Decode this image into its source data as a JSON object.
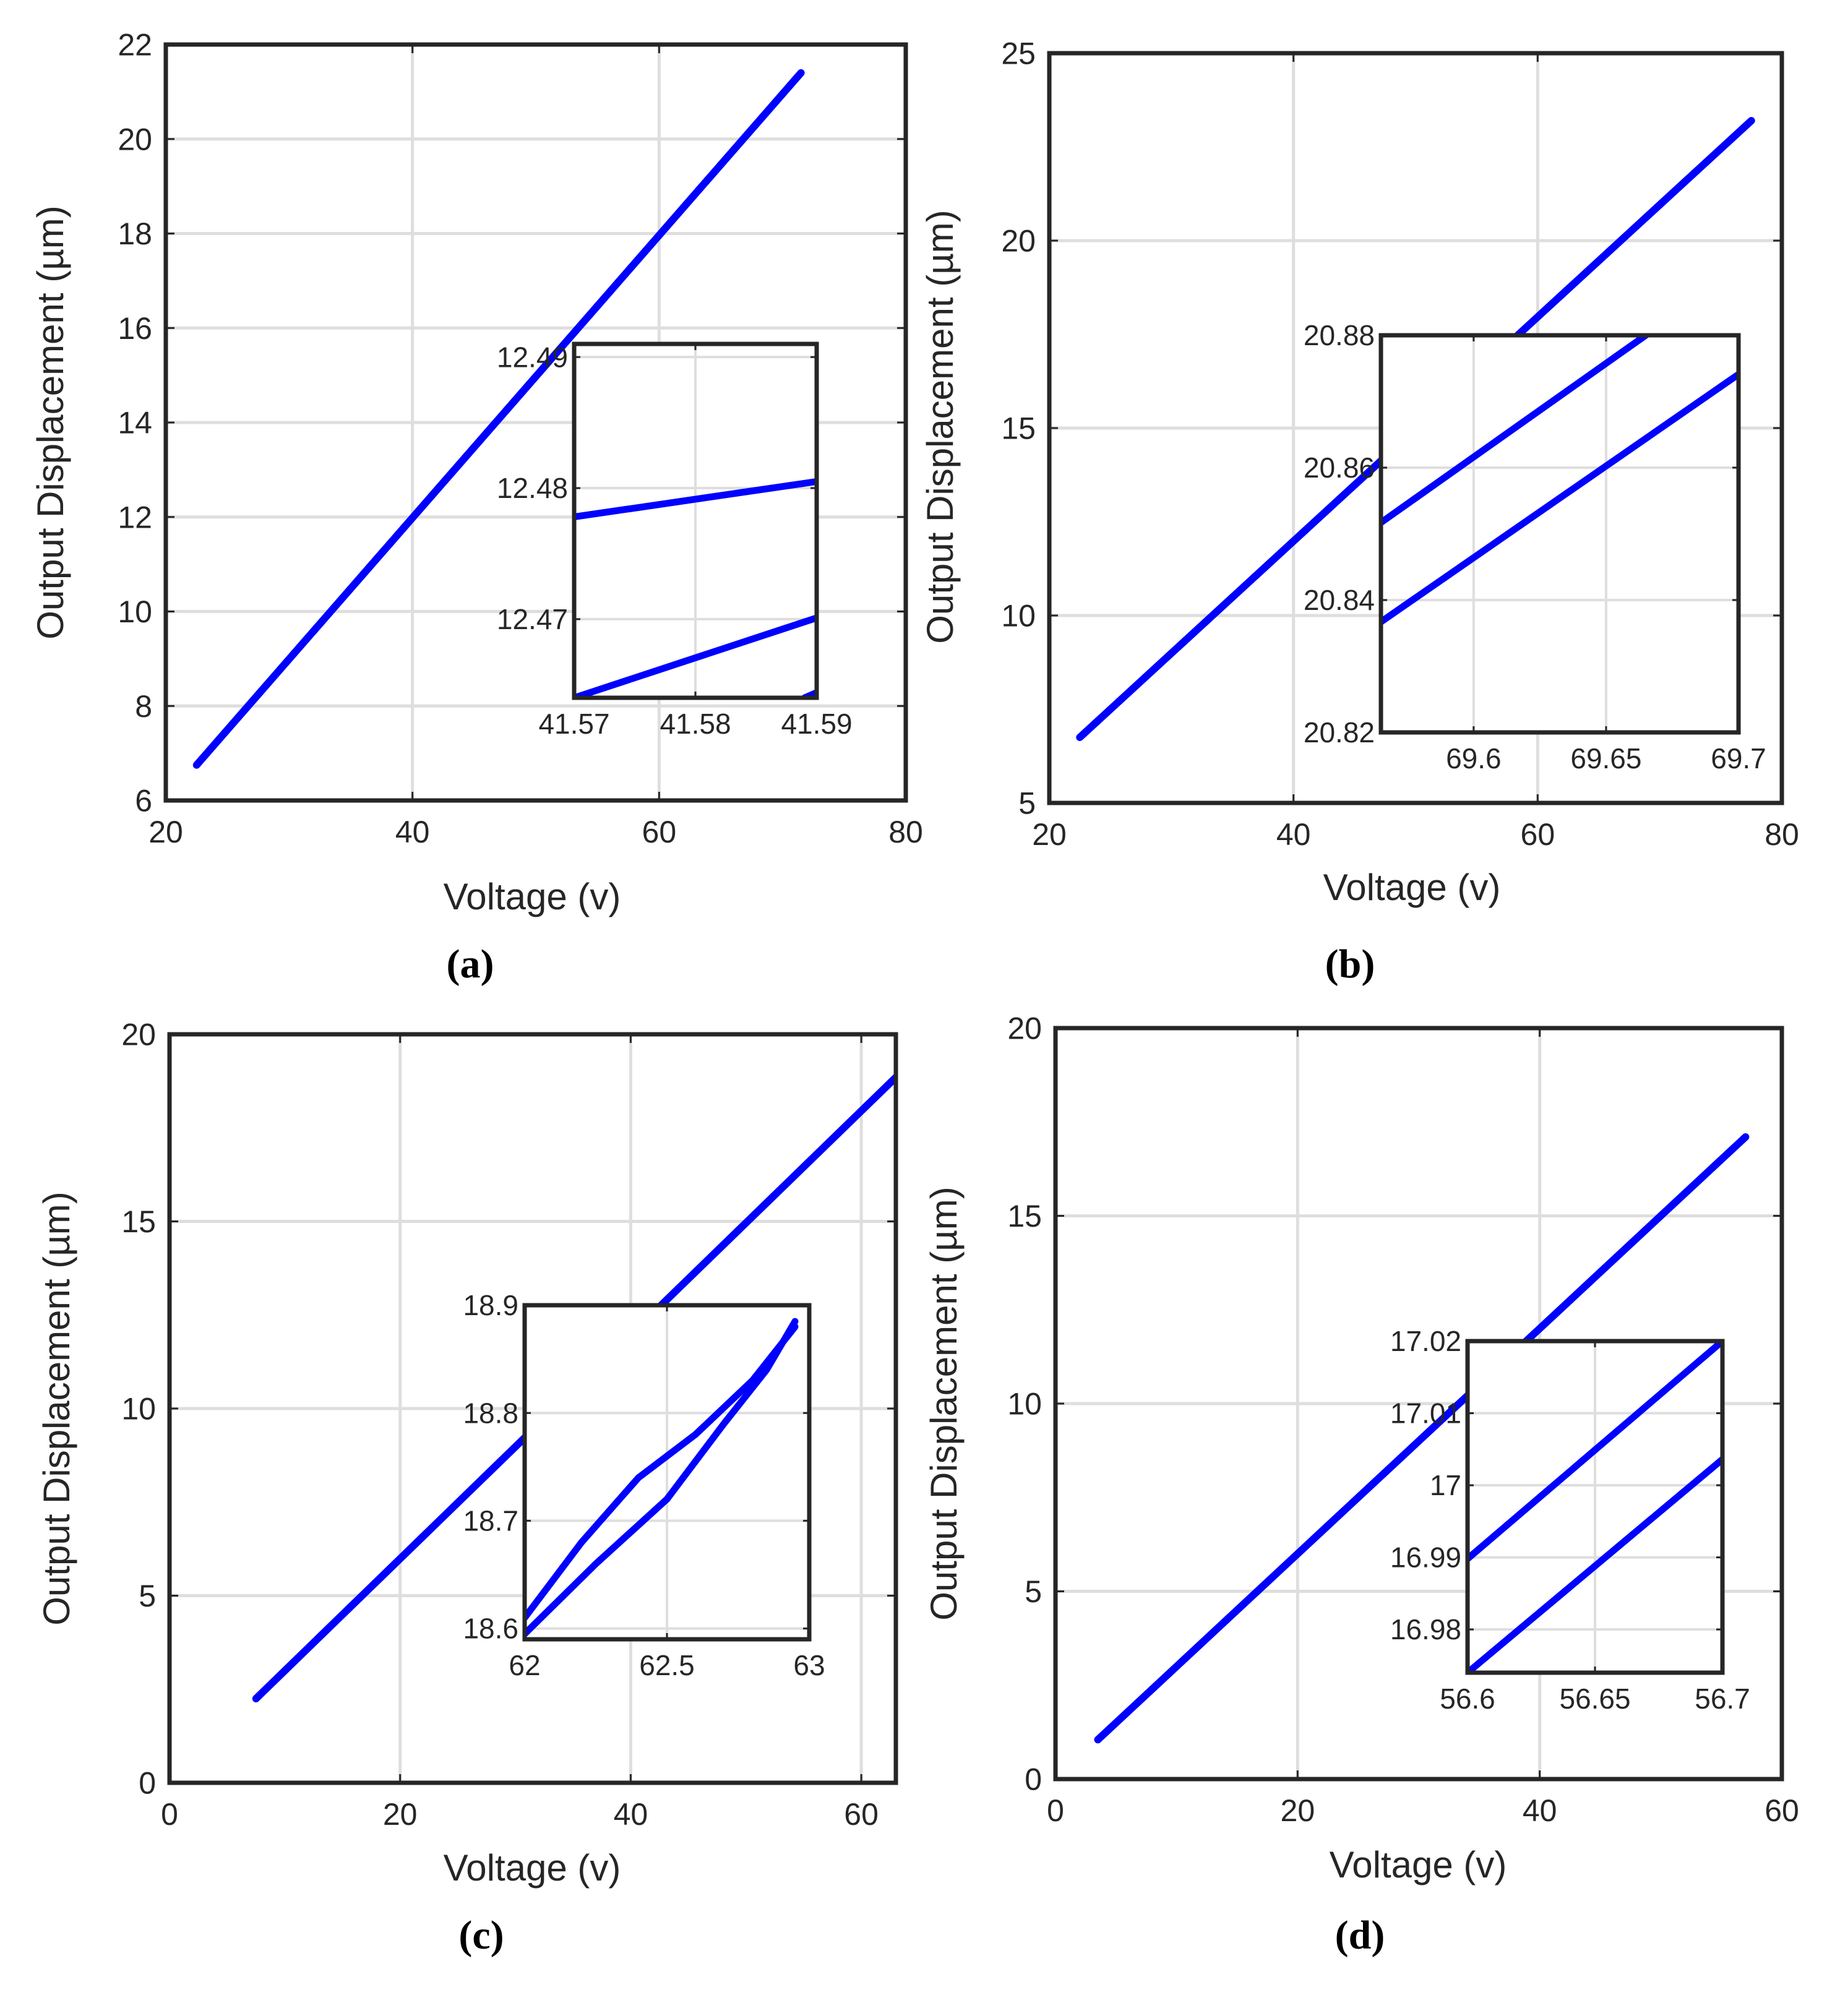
{
  "figure": {
    "captions": [
      "(a)",
      "(b)",
      "(c)",
      "(d)"
    ],
    "line_color": "#0000ff",
    "axis_color": "#262626",
    "grid_color": "#dedede"
  },
  "chart_data": [
    {
      "id": "a",
      "type": "line",
      "caption": "(a)",
      "xlabel": "Voltage (v)",
      "ylabel": "Output Displacement (µm)",
      "xlim": [
        20,
        80
      ],
      "ylim": [
        6,
        22
      ],
      "xticks": [
        20,
        40,
        60,
        80
      ],
      "yticks": [
        6,
        8,
        10,
        12,
        14,
        16,
        18,
        20,
        22
      ],
      "grid": true,
      "series": [
        {
          "name": "displacement",
          "x": [
            22.5,
            71.5
          ],
          "y": [
            6.75,
            21.4
          ]
        }
      ],
      "inset": {
        "xlim": [
          41.57,
          41.59
        ],
        "ylim": [
          12.464,
          12.491
        ],
        "xticks": [
          41.57,
          41.58,
          41.59
        ],
        "xtick_labels": [
          "41.57",
          "41.58",
          "41.59"
        ],
        "yticks": [
          12.47,
          12.48,
          12.49
        ],
        "ytick_labels": [
          "12.47",
          "12.48",
          "12.49"
        ],
        "series": [
          {
            "x": [
              41.57,
              41.59
            ],
            "y": [
              12.4778,
              12.4805
            ]
          },
          {
            "x": [
              41.57,
              41.59
            ],
            "y": [
              12.464,
              12.4701
            ]
          },
          {
            "x": [
              41.589,
              41.59
            ],
            "y": [
              12.464,
              12.4644
            ]
          }
        ]
      }
    },
    {
      "id": "b",
      "type": "line",
      "caption": "(b)",
      "xlabel": "Voltage (v)",
      "ylabel": "Output Displacement (µm)",
      "xlim": [
        20,
        80
      ],
      "ylim": [
        5,
        25
      ],
      "xticks": [
        20,
        40,
        60,
        80
      ],
      "yticks": [
        5,
        10,
        15,
        20,
        25
      ],
      "grid": true,
      "series": [
        {
          "name": "displacement",
          "x": [
            22.5,
            77.5
          ],
          "y": [
            6.75,
            23.2
          ]
        }
      ],
      "inset": {
        "xlim": [
          69.565,
          69.7
        ],
        "ylim": [
          20.82,
          20.88
        ],
        "xticks": [
          69.6,
          69.65,
          69.7
        ],
        "xtick_labels": [
          "69.6",
          "69.65",
          "69.7"
        ],
        "yticks": [
          20.82,
          20.84,
          20.86,
          20.88
        ],
        "ytick_labels": [
          "20.82",
          "20.84",
          "20.86",
          "20.88"
        ],
        "series": [
          {
            "x": [
              69.565,
              69.665
            ],
            "y": [
              20.8517,
              20.88
            ]
          },
          {
            "x": [
              69.565,
              69.7
            ],
            "y": [
              20.8367,
              20.8741
            ]
          }
        ]
      }
    },
    {
      "id": "c",
      "type": "line",
      "caption": "(c)",
      "xlabel": "Voltage (v)",
      "ylabel": "Output Displacement (µm)",
      "xlim": [
        0,
        63
      ],
      "ylim": [
        0,
        20
      ],
      "xticks": [
        0,
        20,
        40,
        60
      ],
      "yticks": [
        0,
        5,
        10,
        15,
        20
      ],
      "grid": true,
      "series": [
        {
          "name": "displacement",
          "x": [
            7.5,
            63
          ],
          "y": [
            2.25,
            18.85
          ]
        }
      ],
      "inset": {
        "xlim": [
          62,
          63
        ],
        "ylim": [
          18.59,
          18.9
        ],
        "xticks": [
          62,
          62.5,
          63
        ],
        "xtick_labels": [
          "62",
          "62.5",
          "63"
        ],
        "yticks": [
          18.6,
          18.7,
          18.8,
          18.9
        ],
        "ytick_labels": [
          "18.6",
          "18.7",
          "18.8",
          "18.9"
        ],
        "series": [
          {
            "x": [
              62.0,
              62.2,
              62.4,
              62.6,
              62.8,
              62.95
            ],
            "y": [
              18.61,
              18.68,
              18.74,
              18.78,
              18.83,
              18.88
            ]
          },
          {
            "x": [
              62.0,
              62.25,
              62.5,
              62.7,
              62.85,
              62.95
            ],
            "y": [
              18.595,
              18.66,
              18.72,
              18.79,
              18.84,
              18.885
            ]
          }
        ]
      }
    },
    {
      "id": "d",
      "type": "line",
      "caption": "(d)",
      "xlabel": "Voltage (v)",
      "ylabel": "Output Displacement (µm)",
      "xlim": [
        0,
        60
      ],
      "ylim": [
        0,
        20
      ],
      "xticks": [
        0,
        20,
        40,
        60
      ],
      "yticks": [
        0,
        5,
        10,
        15,
        20
      ],
      "grid": true,
      "series": [
        {
          "name": "displacement",
          "x": [
            3.5,
            57
          ],
          "y": [
            1.05,
            17.1
          ]
        }
      ],
      "inset": {
        "xlim": [
          56.6,
          56.7
        ],
        "ylim": [
          16.974,
          17.02
        ],
        "xticks": [
          56.6,
          56.65,
          56.7
        ],
        "xtick_labels": [
          "56.6",
          "56.65",
          "56.7"
        ],
        "yticks": [
          16.98,
          16.99,
          17.0,
          17.01,
          17.02
        ],
        "ytick_labels": [
          "16.98",
          "16.99",
          "17",
          "17.01",
          "17.02"
        ],
        "series": [
          {
            "x": [
              56.6,
              56.7
            ],
            "y": [
              16.9898,
              17.02
            ]
          },
          {
            "x": [
              56.6,
              56.7
            ],
            "y": [
              16.974,
              17.0036
            ]
          }
        ]
      }
    }
  ]
}
